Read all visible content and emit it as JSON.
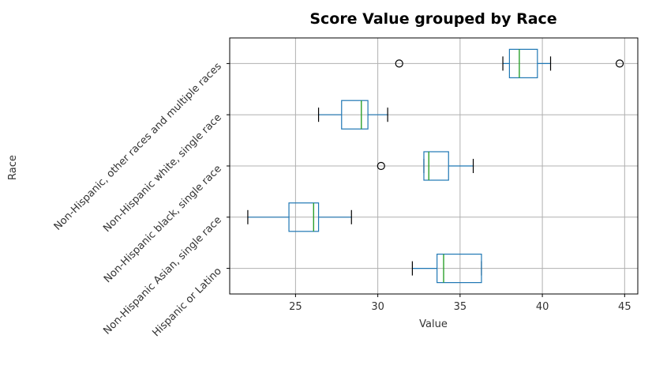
{
  "chart_data": {
    "type": "box",
    "orientation": "horizontal",
    "title": "Score Value grouped by Race",
    "xlabel": "Value",
    "ylabel": "Race",
    "xlim": [
      21,
      45.8
    ],
    "xticks": [
      25,
      30,
      35,
      40,
      45
    ],
    "grid": true,
    "colors": {
      "box": "#1f77b4",
      "median": "#2ca02c",
      "whisker": "#1f77b4",
      "cap": "#000000",
      "outlier": "#000000",
      "grid": "#b0b0b0"
    },
    "categories": [
      "Hispanic or Latino",
      "Non-Hispanic Asian, single race",
      "Non-Hispanic black, single race",
      "Non-Hispanic white, single race",
      "Non-Hispanic, other races and multiple races"
    ],
    "boxes": [
      {
        "label": "Hispanic or Latino",
        "whislo": 32.1,
        "q1": 33.6,
        "med": 34.0,
        "q3": 36.3,
        "whishi": 36.3,
        "fliers": []
      },
      {
        "label": "Non-Hispanic Asian, single race",
        "whislo": 22.1,
        "q1": 24.6,
        "med": 26.1,
        "q3": 26.4,
        "whishi": 28.4,
        "fliers": []
      },
      {
        "label": "Non-Hispanic black, single race",
        "whislo": 32.8,
        "q1": 32.8,
        "med": 33.1,
        "q3": 34.3,
        "whishi": 35.8,
        "fliers": [
          30.2
        ]
      },
      {
        "label": "Non-Hispanic white, single race",
        "whislo": 26.4,
        "q1": 27.8,
        "med": 29.0,
        "q3": 29.4,
        "whishi": 30.6,
        "fliers": []
      },
      {
        "label": "Non-Hispanic, other races and multiple races",
        "whislo": 37.6,
        "q1": 38.0,
        "med": 38.6,
        "q3": 39.7,
        "whishi": 40.5,
        "fliers": [
          31.3,
          44.7
        ]
      }
    ]
  }
}
